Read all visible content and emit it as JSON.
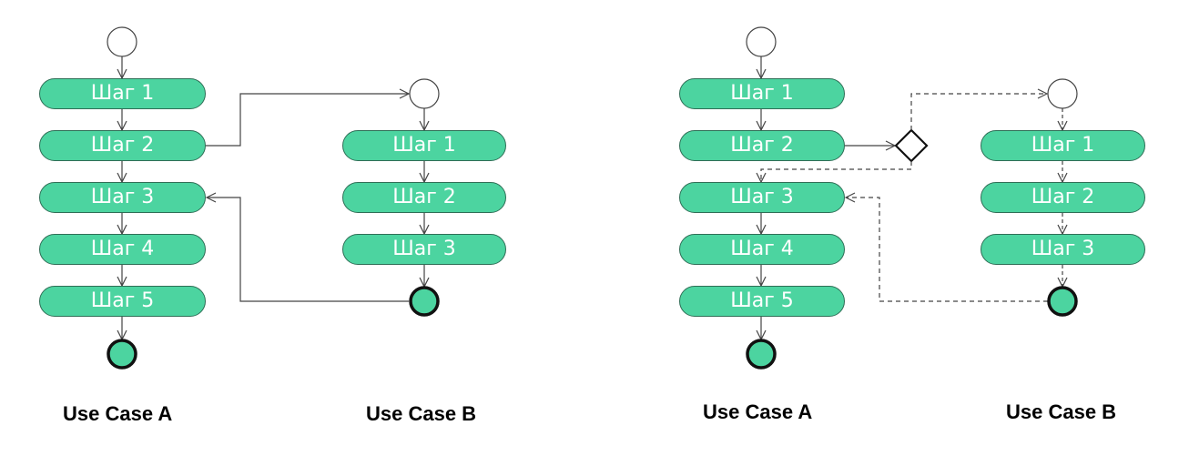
{
  "colors": {
    "step_fill": "#4cd4a0",
    "step_border": "#2f6e56",
    "final_node_fill": "#4cd4a0",
    "line": "#444444",
    "caption": "#000000"
  },
  "left": {
    "use_case_a": {
      "caption": "Use Case A",
      "steps": [
        "Шаг 1",
        "Шаг 2",
        "Шаг 3",
        "Шаг 4",
        "Шаг 5"
      ]
    },
    "use_case_b": {
      "caption": "Use Case B",
      "steps": [
        "Шаг 1",
        "Шаг 2",
        "Шаг 3"
      ]
    },
    "connection_style": "solid"
  },
  "right": {
    "use_case_a": {
      "caption": "Use Case A",
      "steps": [
        "Шаг 1",
        "Шаг 2",
        "Шаг 3",
        "Шаг 4",
        "Шаг 5"
      ]
    },
    "use_case_b": {
      "caption": "Use Case B",
      "steps": [
        "Шаг 1",
        "Шаг 2",
        "Шаг 3"
      ]
    },
    "connection_style": "dashed-with-decision"
  }
}
